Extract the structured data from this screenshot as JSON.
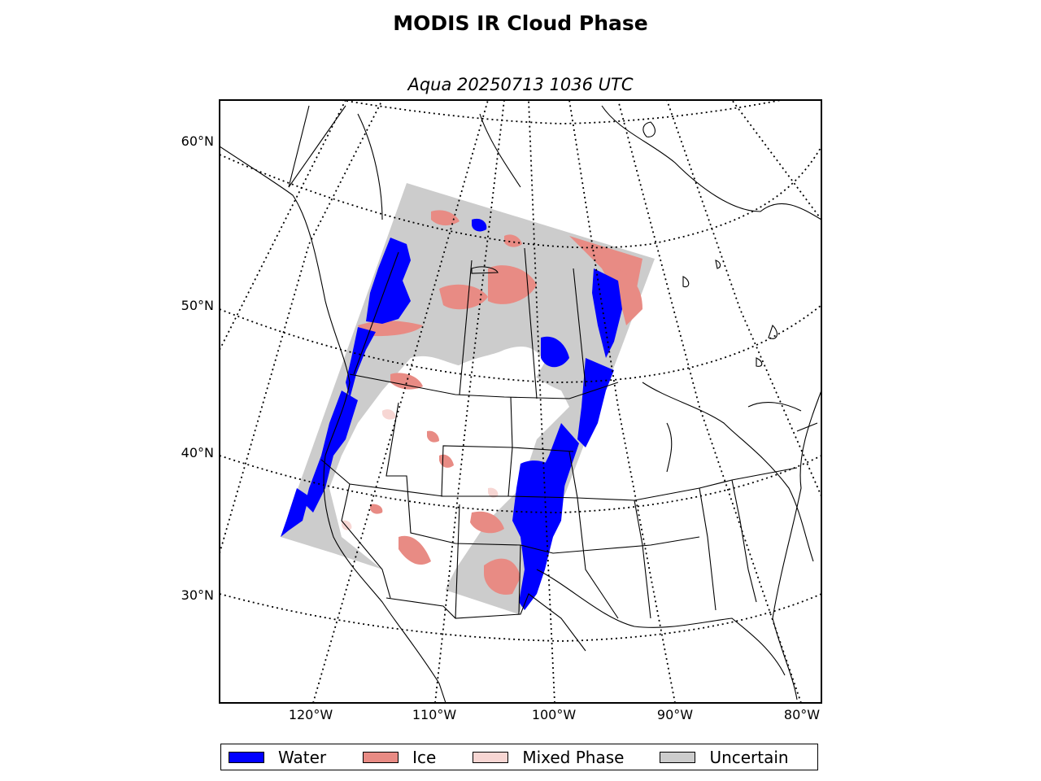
{
  "title": "MODIS IR Cloud Phase",
  "subtitle": "Aqua 20250713 1036 UTC",
  "graticule": {
    "lat_labels": [
      "60°N",
      "50°N",
      "40°N",
      "30°N"
    ],
    "lon_labels": [
      "120°W",
      "110°W",
      "100°W",
      "90°W",
      "80°W"
    ]
  },
  "legend": [
    {
      "label": "Water",
      "color": "#0000ff"
    },
    {
      "label": "Ice",
      "color": "#e88b84"
    },
    {
      "label": "Mixed Phase",
      "color": "#f7d6d3"
    },
    {
      "label": "Uncertain",
      "color": "#cccccc"
    }
  ],
  "colors": {
    "water": "#0000ff",
    "ice": "#e88b84",
    "mixed": "#f7d6d3",
    "uncertain": "#cccccc"
  }
}
